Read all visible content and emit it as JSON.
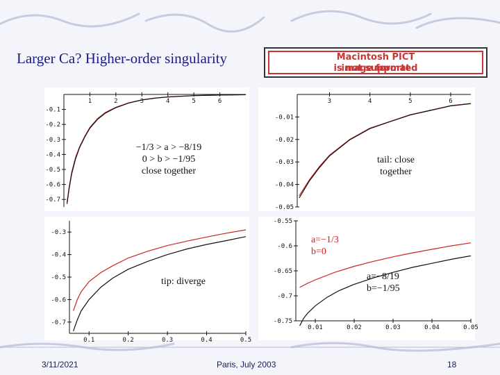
{
  "slide": {
    "title": "Larger Ca? Higher-order singularity",
    "pict_line1": "Macintosh PICT",
    "pict_line2": "image format",
    "pict_line3": "is not supported",
    "footer_date": "3/11/2021",
    "footer_center": "Paris, July 2003",
    "page_number": "18",
    "colors": {
      "title": "#1a1a8a",
      "red_curve": "#cc2222",
      "black_curve": "#111111",
      "background": "#f4f5fa"
    }
  },
  "chart_data": [
    {
      "id": "top_left",
      "type": "line",
      "xlim": [
        0,
        7
      ],
      "ylim": [
        -0.75,
        0
      ],
      "x_ticks": [
        1,
        2,
        3,
        4,
        5,
        6
      ],
      "x_tick_labels": [
        "1",
        "2",
        "3",
        "4",
        "5",
        "6"
      ],
      "y_ticks": [
        -0.1,
        -0.2,
        -0.3,
        -0.4,
        -0.5,
        -0.6,
        -0.7
      ],
      "y_tick_labels": [
        "-0.1",
        "-0.2",
        "-0.3",
        "-0.4",
        "-0.5",
        "-0.6",
        "-0.7"
      ],
      "annotation": [
        "−1/3 > a > −8/19",
        "0 > b > −1/95",
        "close together"
      ],
      "series": [
        {
          "color": "#cc2222",
          "x": [
            0.12,
            0.2,
            0.3,
            0.45,
            0.6,
            0.8,
            1.0,
            1.3,
            1.6,
            2.0,
            2.5,
            3.0,
            3.5,
            4.0,
            5.0,
            6.0,
            7.0
          ],
          "y": [
            -0.72,
            -0.62,
            -0.52,
            -0.42,
            -0.35,
            -0.28,
            -0.22,
            -0.16,
            -0.12,
            -0.085,
            -0.055,
            -0.036,
            -0.024,
            -0.016,
            -0.008,
            -0.004,
            -0.002
          ]
        },
        {
          "color": "#111111",
          "x": [
            0.12,
            0.2,
            0.3,
            0.45,
            0.6,
            0.8,
            1.0,
            1.3,
            1.6,
            2.0,
            2.5,
            3.0,
            3.5,
            4.0,
            5.0,
            6.0,
            7.0
          ],
          "y": [
            -0.73,
            -0.63,
            -0.53,
            -0.43,
            -0.355,
            -0.285,
            -0.225,
            -0.165,
            -0.124,
            -0.088,
            -0.057,
            -0.037,
            -0.025,
            -0.017,
            -0.008,
            -0.004,
            -0.002
          ]
        }
      ]
    },
    {
      "id": "top_right",
      "type": "line",
      "xlim": [
        2.2,
        6.5
      ],
      "ylim": [
        -0.05,
        0
      ],
      "x_ticks": [
        3,
        4,
        5,
        6
      ],
      "x_tick_labels": [
        "3",
        "4",
        "5",
        "6"
      ],
      "y_ticks": [
        -0.01,
        -0.02,
        -0.03,
        -0.04,
        -0.05
      ],
      "y_tick_labels": [
        "-0.01",
        "-0.02",
        "-0.03",
        "-0.04",
        "-0.05"
      ],
      "annotation": [
        "tail: close",
        "together"
      ],
      "series": [
        {
          "color": "#cc2222",
          "x": [
            2.25,
            2.5,
            2.75,
            3.0,
            3.5,
            4.0,
            4.5,
            5.0,
            5.5,
            6.0,
            6.5
          ],
          "y": [
            -0.045,
            -0.038,
            -0.032,
            -0.027,
            -0.02,
            -0.015,
            -0.012,
            -0.009,
            -0.007,
            -0.005,
            -0.004
          ]
        },
        {
          "color": "#111111",
          "x": [
            2.25,
            2.5,
            2.75,
            3.0,
            3.5,
            4.0,
            4.5,
            5.0,
            5.5,
            6.0,
            6.5
          ],
          "y": [
            -0.046,
            -0.0385,
            -0.0325,
            -0.0273,
            -0.0202,
            -0.0152,
            -0.0121,
            -0.0091,
            -0.0071,
            -0.0051,
            -0.0041
          ]
        }
      ]
    },
    {
      "id": "bottom_left",
      "type": "line",
      "xlim": [
        0.05,
        0.5
      ],
      "ylim": [
        -0.75,
        -0.25
      ],
      "x_ticks": [
        0.1,
        0.2,
        0.3,
        0.4,
        0.5
      ],
      "x_tick_labels": [
        "0.1",
        "0.2",
        "0.3",
        "0.4",
        "0.5"
      ],
      "y_ticks": [
        -0.3,
        -0.4,
        -0.5,
        -0.6,
        -0.7
      ],
      "y_tick_labels": [
        "-0.3",
        "-0.4",
        "-0.5",
        "-0.6",
        "-0.7"
      ],
      "annotation": [
        "tip: diverge"
      ],
      "series": [
        {
          "color": "#cc2222",
          "x": [
            0.06,
            0.07,
            0.08,
            0.1,
            0.13,
            0.16,
            0.2,
            0.25,
            0.3,
            0.35,
            0.4,
            0.45,
            0.5
          ],
          "y": [
            -0.65,
            -0.6,
            -0.565,
            -0.52,
            -0.48,
            -0.45,
            -0.415,
            -0.385,
            -0.36,
            -0.34,
            -0.322,
            -0.305,
            -0.29
          ]
        },
        {
          "color": "#111111",
          "x": [
            0.06,
            0.07,
            0.08,
            0.1,
            0.13,
            0.16,
            0.2,
            0.25,
            0.3,
            0.35,
            0.4,
            0.45,
            0.5
          ],
          "y": [
            -0.74,
            -0.69,
            -0.65,
            -0.6,
            -0.545,
            -0.505,
            -0.465,
            -0.43,
            -0.4,
            -0.375,
            -0.355,
            -0.338,
            -0.32
          ]
        }
      ]
    },
    {
      "id": "bottom_right",
      "type": "line",
      "xlim": [
        0.005,
        0.05
      ],
      "ylim": [
        -0.75,
        -0.55
      ],
      "x_ticks": [
        0.01,
        0.02,
        0.03,
        0.04,
        0.05
      ],
      "x_tick_labels": [
        "0.01",
        "0.02",
        "0.03",
        "0.04",
        "0.05"
      ],
      "y_ticks": [
        -0.55,
        -0.6,
        -0.65,
        -0.7,
        -0.75
      ],
      "y_tick_labels": [
        "-0.55",
        "-0.6",
        "-0.65",
        "-0.7",
        "-0.75"
      ],
      "annotation_red": [
        "a=−1/3",
        "b=0"
      ],
      "annotation_black": [
        "a=−8/19",
        "b=−1/95"
      ],
      "series": [
        {
          "color": "#cc2222",
          "x": [
            0.006,
            0.008,
            0.01,
            0.015,
            0.02,
            0.025,
            0.03,
            0.035,
            0.04,
            0.045,
            0.05
          ],
          "y": [
            -0.683,
            -0.675,
            -0.668,
            -0.653,
            -0.641,
            -0.631,
            -0.622,
            -0.614,
            -0.607,
            -0.6,
            -0.594
          ]
        },
        {
          "color": "#111111",
          "x": [
            0.006,
            0.007,
            0.008,
            0.01,
            0.013,
            0.016,
            0.02,
            0.025,
            0.03,
            0.035,
            0.04,
            0.045,
            0.05
          ],
          "y": [
            -0.76,
            -0.745,
            -0.735,
            -0.72,
            -0.703,
            -0.69,
            -0.677,
            -0.664,
            -0.653,
            -0.643,
            -0.635,
            -0.627,
            -0.62
          ]
        }
      ]
    }
  ]
}
